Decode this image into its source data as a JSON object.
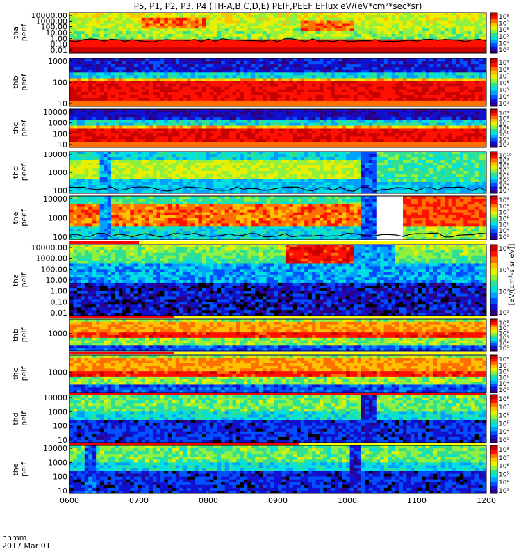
{
  "title": "P5, P1, P2, P3, P4 (TH-A,B,C,D,E) PEIF,PEEF EFlux eV/(eV*cm²*sec*sr)",
  "footer": {
    "line1": "hhmm",
    "line2": "2017 Mar 01"
  },
  "colorbar_label": "[eV/(cm²-s sr eV)]",
  "chart_data": {
    "type": "heatmap",
    "x_ticks": [
      "0600",
      "0700",
      "0800",
      "0900",
      "1000",
      "1100",
      "1200"
    ],
    "x_range": [
      "0600",
      "1200"
    ],
    "panels": [
      {
        "label": [
          "tha",
          "peef"
        ],
        "yticks": [
          "10000.00",
          "1000.00",
          "100.00",
          "10.00",
          "1.00",
          "0.10",
          "0.01"
        ],
        "cbar_ticks": [
          "10⁸",
          "10⁷",
          "10⁶",
          "10⁵",
          "10⁴",
          "10³"
        ],
        "variant": "tha_peef"
      },
      {
        "label": [
          "thb",
          "peef"
        ],
        "yticks": [
          "1000",
          "100",
          "10"
        ],
        "cbar_ticks": [
          "10⁹",
          "10⁸",
          "10⁷",
          "10⁶",
          "10⁵",
          "10⁴",
          "10³"
        ],
        "variant": "thb_peef"
      },
      {
        "label": [
          "thc",
          "peef"
        ],
        "yticks": [
          "10000",
          "1000",
          "100",
          "10"
        ],
        "cbar_ticks": [
          "10⁹",
          "10⁸",
          "10⁷",
          "10⁶",
          "10⁵",
          "10⁴",
          "10³"
        ],
        "variant": "thc_peef"
      },
      {
        "label": [
          "thd",
          "peef"
        ],
        "yticks": [
          "10000",
          "1000",
          "100"
        ],
        "cbar_ticks": [
          "10¹⁰",
          "10⁹",
          "10⁸",
          "10⁷",
          "10⁶",
          "10⁵",
          "10⁴",
          "10³"
        ],
        "variant": "thd_peef"
      },
      {
        "label": [
          "the",
          "peef"
        ],
        "yticks": [
          "10000",
          "1000",
          "100"
        ],
        "cbar_ticks": [
          "10⁹",
          "10⁸",
          "10⁷",
          "10⁶",
          "10⁵",
          "10⁴",
          "10³"
        ],
        "variant": "the_peef"
      },
      {
        "label": [
          "tha",
          "peif"
        ],
        "yticks": [
          "10000.00",
          "1000.00",
          "100.00",
          "10.00",
          "1.00",
          "0.10",
          "0.01"
        ],
        "cbar_ticks": [
          "10⁶",
          "10⁵",
          "10⁴",
          "10³"
        ],
        "variant": "tha_peif"
      },
      {
        "label": [
          "thb",
          "peif"
        ],
        "yticks": [
          "1000"
        ],
        "cbar_ticks": [
          "10⁸",
          "10⁷",
          "10⁶",
          "10⁵",
          "10⁴",
          "10³"
        ],
        "variant": "thb_peif"
      },
      {
        "label": [
          "thc",
          "peif"
        ],
        "yticks": [
          "1000"
        ],
        "cbar_ticks": [
          "10⁸",
          "10⁷",
          "10⁶",
          "10⁵",
          "10⁴",
          "10³"
        ],
        "variant": "thc_peif"
      },
      {
        "label": [
          "thd",
          "peif"
        ],
        "yticks": [
          "10000",
          "1000",
          "100",
          "10"
        ],
        "cbar_ticks": [
          "10⁸",
          "10⁷",
          "10⁶",
          "10⁵",
          "10⁴",
          "10³"
        ],
        "variant": "thd_peif"
      },
      {
        "label": [
          "the",
          "peif"
        ],
        "yticks": [
          "10000",
          "1000",
          "100",
          "10"
        ],
        "cbar_ticks": [
          "10⁸",
          "10⁷",
          "10⁶",
          "10⁵",
          "10⁴",
          "10³"
        ],
        "variant": "the_peif"
      }
    ],
    "colors": {
      "scale": [
        "#2c0080",
        "#1010d0",
        "#0050ff",
        "#00a0ff",
        "#00e0e0",
        "#30e090",
        "#90f040",
        "#e8f000",
        "#ffc000",
        "#ff7000",
        "#ff1000",
        "#c80000"
      ],
      "flag_red": "#ff0000",
      "flag_yellow": "#ffff00"
    }
  }
}
